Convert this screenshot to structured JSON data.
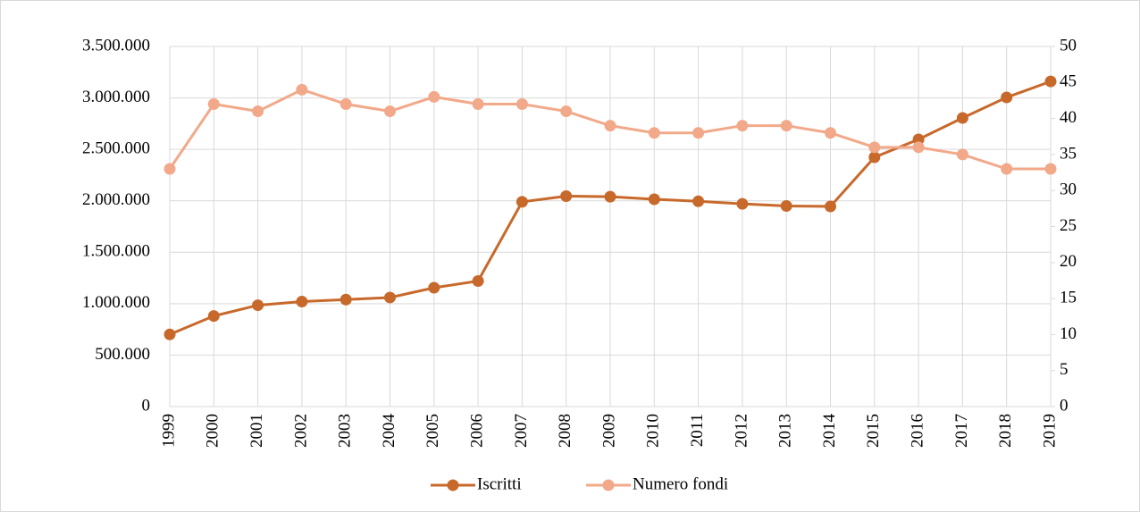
{
  "chart_data": {
    "type": "line",
    "categories": [
      "1999",
      "2000",
      "2001",
      "2002",
      "2003",
      "2004",
      "2005",
      "2006",
      "2007",
      "2008",
      "2009",
      "2010",
      "2011",
      "2012",
      "2013",
      "2014",
      "2015",
      "2016",
      "2017",
      "2018",
      "2019"
    ],
    "series": [
      {
        "name": "Iscritti",
        "color": "#c8692c",
        "values": [
          701000,
          880000,
          985000,
          1020000,
          1040000,
          1060000,
          1155000,
          1220000,
          1990000,
          2045000,
          2040000,
          2015000,
          1995000,
          1970000,
          1950000,
          1945000,
          2423000,
          2597000,
          2805000,
          3005000,
          3160000
        ]
      },
      {
        "name": "Numero fondi",
        "color": "#f2a98a",
        "axis": "y2",
        "values": [
          33,
          42,
          41,
          44,
          42,
          41,
          43,
          42,
          42,
          41,
          39,
          38,
          38,
          39,
          39,
          38,
          36,
          36,
          35,
          33,
          33
        ]
      }
    ],
    "ylim": [
      0,
      3500000
    ],
    "yticks": [
      0,
      {
        "value": 500000,
        "label": "500.000"
      },
      {
        "value": 1000000,
        "label": "1.000.000"
      },
      {
        "value": 1500000,
        "label": "1.500.000"
      },
      {
        "value": 2000000,
        "label": "2.000.000"
      },
      {
        "value": 2500000,
        "label": "2.500.000"
      },
      {
        "value": 3000000,
        "label": "3.000.000"
      },
      {
        "value": 3500000,
        "label": "3.500.000"
      }
    ],
    "y2lim": [
      0,
      50
    ],
    "y2ticks": [
      0,
      5,
      10,
      15,
      20,
      25,
      30,
      35,
      40,
      45,
      50
    ],
    "grid": true,
    "legend": "bottom"
  }
}
